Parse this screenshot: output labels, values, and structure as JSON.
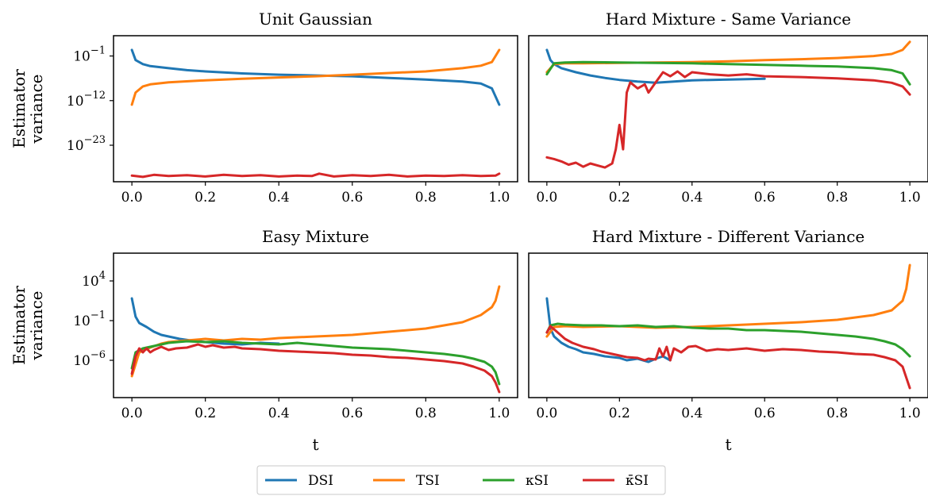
{
  "colors": {
    "DSI": "#1f77b4",
    "TSI": "#ff7f0e",
    "kSI": "#2ca02c",
    "kbarSI": "#d62728"
  },
  "legend": {
    "placement": "bottom-center",
    "entries": [
      {
        "key": "DSI",
        "label": "DSI"
      },
      {
        "key": "TSI",
        "label": "TSI"
      },
      {
        "key": "kSI",
        "label": "κSI"
      },
      {
        "key": "kbarSI",
        "label": "κ̄SI"
      }
    ]
  },
  "chart_data": [
    {
      "type": "line",
      "title": "Unit Gaussian",
      "ylabel": [
        "Estimator",
        "variance"
      ],
      "xlabel": "",
      "yscale": "log",
      "ylog_range": [
        -32,
        4
      ],
      "yticks": [
        {
          "exp": -1,
          "label": "10",
          "sup": "−1"
        },
        {
          "exp": -12,
          "label": "10",
          "sup": "−12"
        },
        {
          "exp": -23,
          "label": "10",
          "sup": "−23"
        }
      ],
      "xticks": [
        "0.0",
        "0.2",
        "0.4",
        "0.6",
        "0.8",
        "1.0"
      ],
      "series": [
        {
          "key": "DSI",
          "x": [
            0.0,
            0.01,
            0.03,
            0.05,
            0.1,
            0.15,
            0.2,
            0.3,
            0.4,
            0.5,
            0.6,
            0.7,
            0.8,
            0.9,
            0.95,
            0.98,
            1.0
          ],
          "log": [
            0.5,
            -2.0,
            -3.0,
            -3.5,
            -4.0,
            -4.5,
            -4.8,
            -5.3,
            -5.6,
            -5.8,
            -6.0,
            -6.4,
            -6.8,
            -7.3,
            -7.8,
            -9.0,
            -13.0
          ]
        },
        {
          "key": "TSI",
          "x": [
            0.0,
            0.01,
            0.03,
            0.05,
            0.1,
            0.2,
            0.3,
            0.4,
            0.5,
            0.6,
            0.7,
            0.8,
            0.9,
            0.95,
            0.98,
            0.99,
            1.0
          ],
          "log": [
            -13.0,
            -10.0,
            -8.5,
            -8.0,
            -7.5,
            -7.0,
            -6.6,
            -6.3,
            -6.0,
            -5.6,
            -5.2,
            -4.8,
            -4.0,
            -3.4,
            -2.5,
            -1.0,
            0.5
          ]
        },
        {
          "key": "kbarSI",
          "x": [
            0.0,
            0.03,
            0.06,
            0.1,
            0.15,
            0.2,
            0.25,
            0.3,
            0.35,
            0.4,
            0.45,
            0.49,
            0.51,
            0.55,
            0.6,
            0.65,
            0.7,
            0.75,
            0.8,
            0.85,
            0.9,
            0.95,
            0.99,
            1.0
          ],
          "log": [
            -30.5,
            -30.8,
            -30.3,
            -30.6,
            -30.4,
            -30.7,
            -30.3,
            -30.6,
            -30.4,
            -30.7,
            -30.5,
            -30.6,
            -30.0,
            -30.7,
            -30.4,
            -30.6,
            -30.3,
            -30.7,
            -30.5,
            -30.6,
            -30.4,
            -30.6,
            -30.5,
            -30.0
          ]
        }
      ]
    },
    {
      "type": "line",
      "title": "Hard Mixture - Same Variance",
      "ylabel": [],
      "xlabel": "",
      "yscale": "log",
      "ylog_range": [
        -32,
        4
      ],
      "yticks": [],
      "xticks": [
        "0.0",
        "0.2",
        "0.4",
        "0.6",
        "0.8",
        "1.0"
      ],
      "series": [
        {
          "key": "DSI",
          "x": [
            0.0,
            0.01,
            0.02,
            0.04,
            0.08,
            0.12,
            0.16,
            0.2,
            0.25,
            0.3,
            0.35,
            0.4,
            0.5,
            0.6
          ],
          "log": [
            0.5,
            -2.0,
            -3.0,
            -4.0,
            -5.0,
            -5.8,
            -6.4,
            -6.9,
            -7.3,
            -7.6,
            -7.3,
            -7.0,
            -6.8,
            -6.6
          ]
        },
        {
          "key": "TSI",
          "x": [
            0.0,
            0.02,
            0.05,
            0.1,
            0.2,
            0.3,
            0.4,
            0.5,
            0.6,
            0.7,
            0.8,
            0.9,
            0.95,
            0.98,
            1.0
          ],
          "log": [
            -5.0,
            -3.0,
            -2.8,
            -2.8,
            -2.7,
            -2.6,
            -2.5,
            -2.3,
            -2.0,
            -1.8,
            -1.5,
            -1.0,
            -0.5,
            0.5,
            2.5
          ]
        },
        {
          "key": "kSI",
          "x": [
            0.0,
            0.02,
            0.05,
            0.1,
            0.2,
            0.3,
            0.4,
            0.5,
            0.6,
            0.7,
            0.8,
            0.9,
            0.95,
            0.98,
            1.0
          ],
          "log": [
            -5.5,
            -2.8,
            -2.6,
            -2.5,
            -2.6,
            -2.7,
            -2.8,
            -3.0,
            -3.2,
            -3.4,
            -3.6,
            -4.0,
            -4.5,
            -5.3,
            -8.0
          ]
        },
        {
          "key": "kbarSI",
          "x": [
            0.0,
            0.02,
            0.04,
            0.06,
            0.08,
            0.1,
            0.12,
            0.14,
            0.16,
            0.18,
            0.19,
            0.2,
            0.21,
            0.22,
            0.23,
            0.25,
            0.27,
            0.28,
            0.3,
            0.32,
            0.34,
            0.36,
            0.38,
            0.4,
            0.45,
            0.5,
            0.55,
            0.6,
            0.7,
            0.8,
            0.9,
            0.95,
            0.98,
            1.0
          ],
          "log": [
            -26.0,
            -26.4,
            -27.0,
            -27.8,
            -27.3,
            -28.3,
            -27.5,
            -28.0,
            -28.5,
            -27.5,
            -24.0,
            -18.0,
            -24.0,
            -10.0,
            -7.5,
            -9.0,
            -8.0,
            -10.0,
            -7.5,
            -5.0,
            -6.0,
            -4.8,
            -6.2,
            -5.0,
            -5.5,
            -5.8,
            -5.5,
            -6.0,
            -6.2,
            -6.5,
            -7.0,
            -7.6,
            -8.5,
            -10.5
          ]
        }
      ]
    },
    {
      "type": "line",
      "title": "Easy Mixture",
      "ylabel": [
        "Estimator",
        "variance"
      ],
      "xlabel": "t",
      "yscale": "log",
      "ylog_range": [
        -10.7,
        7.5
      ],
      "yticks": [
        {
          "exp": 4,
          "label": "10",
          "sup": "4"
        },
        {
          "exp": -1,
          "label": "10",
          "sup": "−1"
        },
        {
          "exp": -6,
          "label": "10",
          "sup": "−6"
        }
      ],
      "xticks": [
        "0.0",
        "0.2",
        "0.4",
        "0.6",
        "0.8",
        "1.0"
      ],
      "series": [
        {
          "key": "DSI",
          "x": [
            0.0,
            0.01,
            0.02,
            0.04,
            0.06,
            0.08,
            0.1,
            0.13,
            0.16,
            0.2,
            0.25,
            0.3,
            0.35,
            0.4
          ],
          "log": [
            1.8,
            -0.5,
            -1.3,
            -1.8,
            -2.4,
            -2.8,
            -3.0,
            -3.3,
            -3.5,
            -3.7,
            -3.9,
            -4.0,
            -3.8,
            -3.9
          ]
        },
        {
          "key": "TSI",
          "x": [
            0.0,
            0.02,
            0.05,
            0.08,
            0.1,
            0.15,
            0.2,
            0.25,
            0.3,
            0.35,
            0.4,
            0.5,
            0.6,
            0.7,
            0.8,
            0.9,
            0.95,
            0.98,
            0.99,
            1.0
          ],
          "log": [
            -8.0,
            -5.0,
            -4.4,
            -3.9,
            -3.7,
            -3.5,
            -3.3,
            -3.5,
            -3.3,
            -3.4,
            -3.2,
            -3.0,
            -2.8,
            -2.4,
            -2.0,
            -1.2,
            -0.3,
            0.7,
            1.5,
            3.3
          ]
        },
        {
          "key": "kSI",
          "x": [
            0.0,
            0.01,
            0.03,
            0.05,
            0.08,
            0.1,
            0.15,
            0.2,
            0.25,
            0.3,
            0.35,
            0.4,
            0.45,
            0.5,
            0.55,
            0.6,
            0.65,
            0.7,
            0.75,
            0.8,
            0.85,
            0.9,
            0.93,
            0.96,
            0.98,
            0.99,
            1.0
          ],
          "log": [
            -7.0,
            -5.0,
            -4.5,
            -4.3,
            -4.0,
            -3.8,
            -3.6,
            -3.7,
            -3.6,
            -3.8,
            -3.9,
            -4.0,
            -3.8,
            -4.0,
            -4.2,
            -4.4,
            -4.5,
            -4.6,
            -4.8,
            -5.0,
            -5.2,
            -5.5,
            -5.8,
            -6.2,
            -6.8,
            -7.5,
            -9.0
          ]
        },
        {
          "key": "kbarSI",
          "x": [
            0.0,
            0.01,
            0.02,
            0.03,
            0.04,
            0.05,
            0.06,
            0.08,
            0.1,
            0.12,
            0.15,
            0.18,
            0.2,
            0.22,
            0.25,
            0.28,
            0.3,
            0.35,
            0.4,
            0.45,
            0.5,
            0.55,
            0.6,
            0.65,
            0.7,
            0.75,
            0.8,
            0.85,
            0.9,
            0.93,
            0.96,
            0.98,
            0.99,
            1.0
          ],
          "log": [
            -7.7,
            -5.5,
            -4.5,
            -5.0,
            -4.5,
            -5.0,
            -4.7,
            -4.3,
            -4.7,
            -4.5,
            -4.4,
            -4.0,
            -4.3,
            -4.1,
            -4.4,
            -4.3,
            -4.5,
            -4.6,
            -4.8,
            -4.9,
            -5.0,
            -5.1,
            -5.3,
            -5.4,
            -5.6,
            -5.7,
            -5.9,
            -6.1,
            -6.4,
            -6.8,
            -7.3,
            -8.0,
            -8.8,
            -10.0
          ]
        }
      ]
    },
    {
      "type": "line",
      "title": "Hard Mixture - Different Variance",
      "ylabel": [],
      "xlabel": "t",
      "yscale": "log",
      "ylog_range": [
        -10.7,
        7.5
      ],
      "yticks": [],
      "xticks": [
        "0.0",
        "0.2",
        "0.4",
        "0.6",
        "0.8",
        "1.0"
      ],
      "series": [
        {
          "key": "DSI",
          "x": [
            0.0,
            0.01,
            0.02,
            0.04,
            0.06,
            0.08,
            0.1,
            0.13,
            0.16,
            0.2,
            0.22,
            0.25,
            0.28,
            0.3,
            0.32,
            0.34
          ],
          "log": [
            1.8,
            -2.0,
            -3.0,
            -3.8,
            -4.3,
            -4.6,
            -5.0,
            -5.2,
            -5.5,
            -5.7,
            -6.0,
            -5.8,
            -6.2,
            -5.8,
            -5.5,
            -6.0
          ]
        },
        {
          "key": "TSI",
          "x": [
            0.0,
            0.02,
            0.05,
            0.1,
            0.2,
            0.3,
            0.4,
            0.5,
            0.6,
            0.7,
            0.8,
            0.9,
            0.95,
            0.98,
            0.99,
            1.0
          ],
          "log": [
            -3.0,
            -1.8,
            -1.7,
            -1.8,
            -1.7,
            -1.9,
            -1.8,
            -1.6,
            -1.4,
            -1.2,
            -0.9,
            -0.3,
            0.3,
            1.5,
            3.0,
            6.0
          ]
        },
        {
          "key": "kSI",
          "x": [
            0.0,
            0.01,
            0.03,
            0.05,
            0.1,
            0.15,
            0.2,
            0.25,
            0.3,
            0.35,
            0.4,
            0.45,
            0.5,
            0.55,
            0.6,
            0.65,
            0.7,
            0.75,
            0.8,
            0.85,
            0.9,
            0.93,
            0.96,
            0.98,
            1.0
          ],
          "log": [
            -2.5,
            -1.6,
            -1.4,
            -1.5,
            -1.6,
            -1.6,
            -1.7,
            -1.6,
            -1.8,
            -1.7,
            -1.9,
            -2.0,
            -2.0,
            -2.2,
            -2.2,
            -2.3,
            -2.4,
            -2.6,
            -2.8,
            -3.0,
            -3.3,
            -3.6,
            -4.0,
            -4.6,
            -5.5
          ]
        },
        {
          "key": "kbarSI",
          "x": [
            0.0,
            0.01,
            0.03,
            0.05,
            0.07,
            0.1,
            0.13,
            0.15,
            0.18,
            0.2,
            0.22,
            0.25,
            0.27,
            0.28,
            0.3,
            0.31,
            0.32,
            0.33,
            0.34,
            0.35,
            0.37,
            0.39,
            0.41,
            0.44,
            0.47,
            0.5,
            0.55,
            0.6,
            0.65,
            0.7,
            0.75,
            0.8,
            0.85,
            0.9,
            0.93,
            0.96,
            0.98,
            1.0
          ],
          "log": [
            -2.5,
            -1.7,
            -2.5,
            -3.3,
            -3.8,
            -4.3,
            -4.6,
            -4.9,
            -5.2,
            -5.4,
            -5.6,
            -5.7,
            -6.0,
            -5.8,
            -5.9,
            -4.5,
            -5.5,
            -4.3,
            -6.0,
            -4.5,
            -5.0,
            -4.3,
            -4.2,
            -4.8,
            -4.6,
            -4.7,
            -4.5,
            -4.8,
            -4.6,
            -4.7,
            -4.9,
            -5.0,
            -5.2,
            -5.3,
            -5.6,
            -6.0,
            -6.8,
            -9.5
          ]
        }
      ]
    }
  ]
}
